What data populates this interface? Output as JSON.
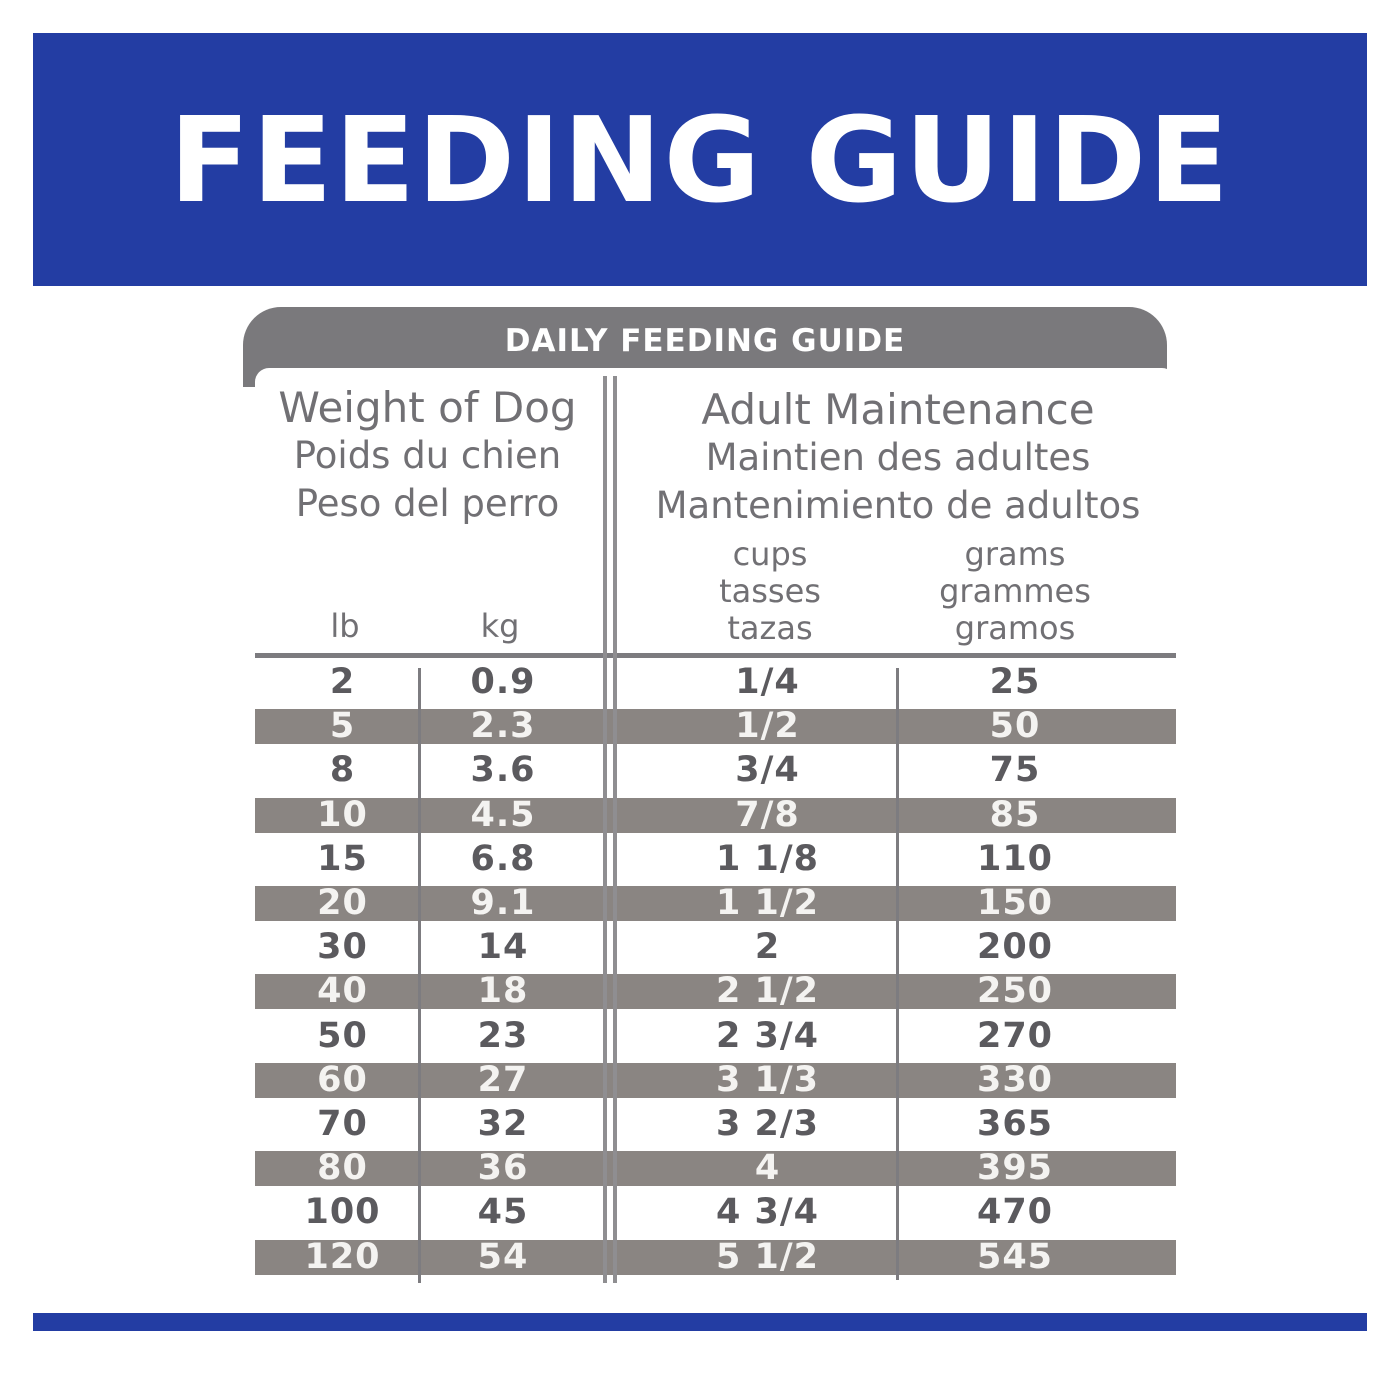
{
  "banner": {
    "title": "FEEDING GUIDE"
  },
  "table": {
    "title": "DAILY FEEDING GUIDE",
    "weight_header": [
      "Weight of Dog",
      "Poids du chien",
      "Peso del perro"
    ],
    "weight_units": [
      "lb",
      "kg"
    ],
    "maintenance_header": [
      "Adult Maintenance",
      "Maintien des adultes",
      "Mantenimiento de adultos"
    ],
    "cups_header": [
      "cups",
      "tasses",
      "tazas"
    ],
    "grams_header": [
      "grams",
      "grammes",
      "gramos"
    ],
    "rows": [
      {
        "lb": "2",
        "kg": "0.9",
        "cups": "1/4",
        "grams": "25"
      },
      {
        "lb": "5",
        "kg": "2.3",
        "cups": "1/2",
        "grams": "50"
      },
      {
        "lb": "8",
        "kg": "3.6",
        "cups": "3/4",
        "grams": "75"
      },
      {
        "lb": "10",
        "kg": "4.5",
        "cups": "7/8",
        "grams": "85"
      },
      {
        "lb": "15",
        "kg": "6.8",
        "cups": "1 1/8",
        "grams": "110"
      },
      {
        "lb": "20",
        "kg": "9.1",
        "cups": "1 1/2",
        "grams": "150"
      },
      {
        "lb": "30",
        "kg": "14",
        "cups": "2",
        "grams": "200"
      },
      {
        "lb": "40",
        "kg": "18",
        "cups": "2 1/2",
        "grams": "250"
      },
      {
        "lb": "50",
        "kg": "23",
        "cups": "2 3/4",
        "grams": "270"
      },
      {
        "lb": "60",
        "kg": "27",
        "cups": "3 1/3",
        "grams": "330"
      },
      {
        "lb": "70",
        "kg": "32",
        "cups": "3 2/3",
        "grams": "365"
      },
      {
        "lb": "80",
        "kg": "36",
        "cups": "4",
        "grams": "395"
      },
      {
        "lb": "100",
        "kg": "45",
        "cups": "4 3/4",
        "grams": "470"
      },
      {
        "lb": "120",
        "kg": "54",
        "cups": "5 1/2",
        "grams": "545"
      }
    ]
  },
  "colors": {
    "banner_blue": "#233da3",
    "row_shade": "#8a8582",
    "text_gray": "#717074"
  }
}
